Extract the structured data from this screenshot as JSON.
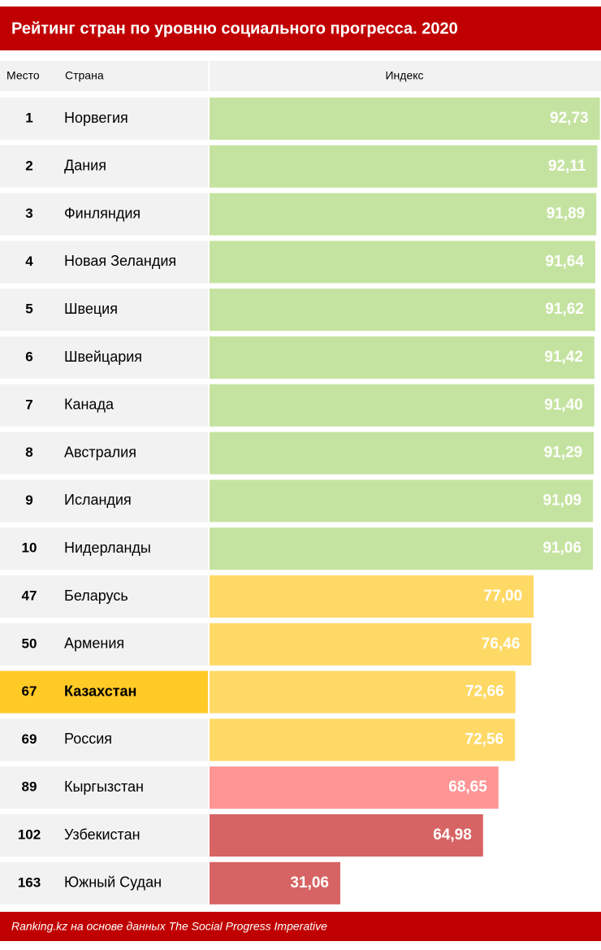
{
  "chart_data": {
    "type": "hbar-table",
    "title": "Рейтинг стран по уровню социального прогресса. 2020",
    "columns": [
      "Место",
      "Страна",
      "Индекс"
    ],
    "ranks": [
      1,
      2,
      3,
      4,
      5,
      6,
      7,
      8,
      9,
      10,
      47,
      50,
      67,
      69,
      89,
      102,
      163
    ],
    "categories": [
      "Норвегия",
      "Дания",
      "Финляндия",
      "Новая Зеландия",
      "Швеция",
      "Швейцария",
      "Канада",
      "Австралия",
      "Исландия",
      "Нидерланды",
      "Беларусь",
      "Армения",
      "Казахстан",
      "Россия",
      "Кыргызстан",
      "Узбекистан",
      "Южный Судан"
    ],
    "values": [
      92.73,
      92.11,
      91.89,
      91.64,
      91.62,
      91.42,
      91.4,
      91.29,
      91.09,
      91.06,
      77.0,
      76.46,
      72.66,
      72.56,
      68.65,
      64.98,
      31.06
    ],
    "value_labels": [
      "92,73",
      "92,11",
      "91,89",
      "91,64",
      "91,62",
      "91,42",
      "91,40",
      "91,29",
      "91,09",
      "91,06",
      "77,00",
      "76,46",
      "72,66",
      "72,56",
      "68,65",
      "64,98",
      "31,06"
    ],
    "colors": [
      "#c5e3a0",
      "#c5e3a0",
      "#c5e3a0",
      "#c5e3a0",
      "#c5e3a0",
      "#c5e3a0",
      "#c5e3a0",
      "#c5e3a0",
      "#c5e3a0",
      "#c5e3a0",
      "#ffd966",
      "#ffd966",
      "#ffd966",
      "#ffd966",
      "#ff9595",
      "#d76464",
      "#d76464"
    ],
    "highlight": "Казахстан",
    "xlim": [
      0,
      93
    ],
    "source": "Ranking.kz на основе данных The Social Progress Imperative"
  }
}
